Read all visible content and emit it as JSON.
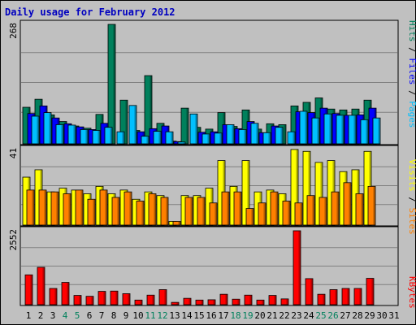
{
  "title": "Daily usage for February 2012",
  "colors": {
    "hits": "#00805c",
    "files": "#0000ff",
    "pages": "#00c0ff",
    "visits": "#ffff00",
    "sites": "#ff8000",
    "kbytes": "#ff0000",
    "title": "#0000c0",
    "weekend": "#00805c"
  },
  "chart_data": [
    {
      "type": "bar",
      "panel": "hits-files-pages",
      "ymax_label": "268",
      "ylim": [
        0,
        268
      ],
      "right_label_parts": [
        "Pages",
        "Files",
        "Hits"
      ],
      "categories": [
        "1",
        "2",
        "3",
        "4",
        "5",
        "6",
        "7",
        "8",
        "9",
        "10",
        "11",
        "12",
        "13",
        "14",
        "15",
        "16",
        "17",
        "18",
        "19",
        "20",
        "21",
        "22",
        "23",
        "24",
        "25",
        "26",
        "27",
        "28",
        "29",
        "30",
        "31"
      ],
      "series": [
        {
          "name": "Hits",
          "values": [
            82,
            100,
            65,
            50,
            40,
            35,
            66,
            268,
            98,
            30,
            153,
            46,
            6,
            80,
            37,
            33,
            70,
            39,
            76,
            33,
            45,
            43,
            85,
            93,
            103,
            78,
            76,
            78,
            98,
            null,
            null
          ]
        },
        {
          "name": "Files",
          "values": [
            68,
            85,
            58,
            45,
            38,
            32,
            46,
            0,
            0,
            27,
            34,
            40,
            5,
            0,
            26,
            27,
            43,
            34,
            50,
            25,
            40,
            0,
            72,
            70,
            80,
            68,
            64,
            65,
            80,
            null,
            null
          ]
        },
        {
          "name": "Pages",
          "values": [
            62,
            70,
            43,
            42,
            32,
            30,
            37,
            27,
            86,
            17,
            28,
            27,
            4,
            67,
            22,
            24,
            43,
            32,
            46,
            25,
            37,
            27,
            73,
            58,
            67,
            64,
            64,
            54,
            58,
            null,
            null
          ]
        }
      ]
    },
    {
      "type": "bar",
      "panel": "visits-sites",
      "ymax_label": "41",
      "ylim": [
        0,
        41
      ],
      "right_label_parts": [
        "Sites",
        "Visits"
      ],
      "categories": [
        "1",
        "2",
        "3",
        "4",
        "5",
        "6",
        "7",
        "8",
        "9",
        "10",
        "11",
        "12",
        "13",
        "14",
        "15",
        "16",
        "17",
        "18",
        "19",
        "20",
        "21",
        "22",
        "23",
        "24",
        "25",
        "26",
        "27",
        "28",
        "29",
        "30",
        "31"
      ],
      "series": [
        {
          "name": "Visits",
          "values": [
            26,
            30,
            18,
            20,
            19,
            17,
            21,
            17,
            19,
            14,
            18,
            16,
            2,
            16,
            16,
            20,
            35,
            21,
            35,
            18,
            19,
            17,
            41,
            40,
            34,
            35,
            29,
            30,
            40,
            null,
            null
          ]
        },
        {
          "name": "Sites",
          "values": [
            19,
            19,
            18,
            17,
            19,
            14,
            19,
            15,
            18,
            13,
            17,
            15,
            2,
            15,
            15,
            12,
            18,
            18,
            9,
            12,
            18,
            13,
            12,
            16,
            15,
            18,
            23,
            17,
            21,
            null,
            null
          ]
        }
      ]
    },
    {
      "type": "bar",
      "panel": "kbytes",
      "ymax_label": "2552",
      "ylim": [
        0,
        2552
      ],
      "right_label_parts": [
        "KBytes"
      ],
      "categories": [
        "1",
        "2",
        "3",
        "4",
        "5",
        "6",
        "7",
        "8",
        "9",
        "10",
        "11",
        "12",
        "13",
        "14",
        "15",
        "16",
        "17",
        "18",
        "19",
        "20",
        "21",
        "22",
        "23",
        "24",
        "25",
        "26",
        "27",
        "28",
        "29",
        "30",
        "31"
      ],
      "series": [
        {
          "name": "KBytes",
          "values": [
            1030,
            1290,
            560,
            770,
            320,
            290,
            460,
            470,
            380,
            160,
            330,
            520,
            80,
            220,
            160,
            170,
            360,
            190,
            330,
            160,
            320,
            200,
            2552,
            900,
            360,
            520,
            560,
            560,
            910,
            null,
            null
          ]
        }
      ]
    }
  ],
  "x_labels": [
    {
      "text": "1",
      "weekend": false
    },
    {
      "text": "2",
      "weekend": false
    },
    {
      "text": "3",
      "weekend": false
    },
    {
      "text": "4",
      "weekend": true
    },
    {
      "text": "5",
      "weekend": true
    },
    {
      "text": "6",
      "weekend": false
    },
    {
      "text": "7",
      "weekend": false
    },
    {
      "text": "8",
      "weekend": false
    },
    {
      "text": "9",
      "weekend": false
    },
    {
      "text": "10",
      "weekend": false
    },
    {
      "text": "11",
      "weekend": true
    },
    {
      "text": "12",
      "weekend": true
    },
    {
      "text": "13",
      "weekend": false
    },
    {
      "text": "14",
      "weekend": false
    },
    {
      "text": "15",
      "weekend": false
    },
    {
      "text": "16",
      "weekend": false
    },
    {
      "text": "17",
      "weekend": false
    },
    {
      "text": "18",
      "weekend": true
    },
    {
      "text": "19",
      "weekend": true
    },
    {
      "text": "20",
      "weekend": false
    },
    {
      "text": "21",
      "weekend": false
    },
    {
      "text": "22",
      "weekend": false
    },
    {
      "text": "23",
      "weekend": false
    },
    {
      "text": "24",
      "weekend": false
    },
    {
      "text": "25",
      "weekend": true
    },
    {
      "text": "26",
      "weekend": true
    },
    {
      "text": "27",
      "weekend": false
    },
    {
      "text": "28",
      "weekend": false
    },
    {
      "text": "29",
      "weekend": false
    },
    {
      "text": "30",
      "weekend": false
    },
    {
      "text": "31",
      "weekend": false
    }
  ]
}
